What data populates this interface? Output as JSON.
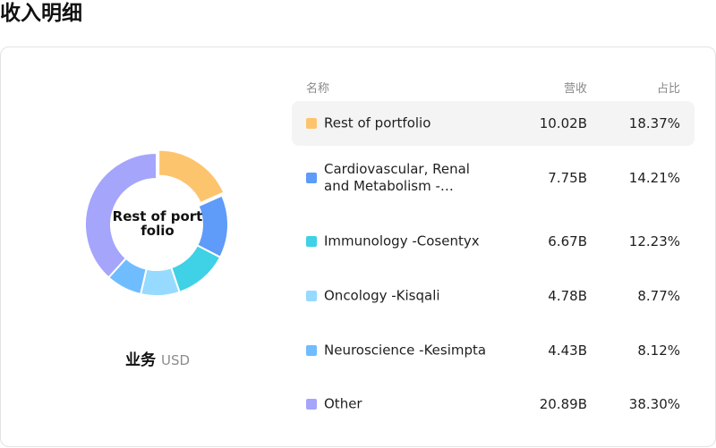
{
  "title": "收入明细",
  "summary": {
    "center_label": "Rest of portfolio",
    "dimension_label": "业务",
    "currency": "USD"
  },
  "table": {
    "headers": {
      "name": "名称",
      "revenue": "营收",
      "share": "占比"
    },
    "rows": [
      {
        "name": "Rest of portfolio",
        "revenue": "10.02B",
        "share": "18.37%",
        "color": "#fdc46e",
        "highlighted": true
      },
      {
        "name": "Cardiovascular, Renal and Metabolism -…",
        "revenue": "7.75B",
        "share": "14.21%",
        "color": "#5f9bf8"
      },
      {
        "name": "Immunology -Cosentyx",
        "revenue": "6.67B",
        "share": "12.23%",
        "color": "#3fd1e6"
      },
      {
        "name": "Oncology -Kisqali",
        "revenue": "4.78B",
        "share": "8.77%",
        "color": "#97daff"
      },
      {
        "name": "Neuroscience -Kesimpta",
        "revenue": "4.43B",
        "share": "8.12%",
        "color": "#6fbdff"
      },
      {
        "name": "Other",
        "revenue": "20.89B",
        "share": "38.30%",
        "color": "#a4a5fb"
      }
    ]
  },
  "chart_data": {
    "type": "pie",
    "categories": [
      "Rest of portfolio",
      "Cardiovascular, Renal and Metabolism -…",
      "Immunology -Cosentyx",
      "Oncology -Kisqali",
      "Neuroscience -Kesimpta",
      "Other"
    ],
    "values": [
      18.37,
      14.21,
      12.23,
      8.77,
      8.12,
      38.3
    ],
    "highlighted": "Rest of portfolio"
  }
}
